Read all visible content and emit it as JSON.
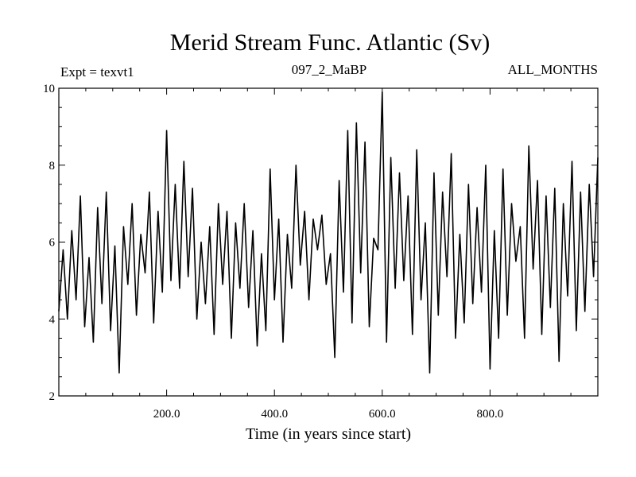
{
  "chart_data": {
    "type": "line",
    "title": "Merid Stream Func. Atlantic (Sv)",
    "experiment": "Expt = texvt1",
    "run_label": "097_2_MaBP",
    "period_label": "ALL_MONTHS",
    "xlabel": "Time (in years since start)",
    "ylabel": "",
    "xlim": [
      0,
      1000
    ],
    "ylim": [
      2,
      10
    ],
    "x_tick_labels": [
      {
        "value": 200,
        "label": "200.0"
      },
      {
        "value": 400,
        "label": "400.0"
      },
      {
        "value": 600,
        "label": "600.0"
      },
      {
        "value": 800,
        "label": "800.0"
      }
    ],
    "y_tick_labels": [
      {
        "value": 2,
        "label": "2"
      },
      {
        "value": 4,
        "label": "4"
      },
      {
        "value": 6,
        "label": "6"
      },
      {
        "value": 8,
        "label": "8"
      },
      {
        "value": 10,
        "label": "10"
      }
    ],
    "series": [
      {
        "name": "Merid Stream Func. Atlantic",
        "x": [
          0,
          8,
          16,
          24,
          32,
          40,
          48,
          56,
          64,
          72,
          80,
          88,
          96,
          104,
          112,
          120,
          128,
          136,
          144,
          152,
          160,
          168,
          176,
          184,
          192,
          200,
          208,
          216,
          224,
          232,
          240,
          248,
          256,
          264,
          272,
          280,
          288,
          296,
          304,
          312,
          320,
          328,
          336,
          344,
          352,
          360,
          368,
          376,
          384,
          392,
          400,
          408,
          416,
          424,
          432,
          440,
          448,
          456,
          464,
          472,
          480,
          488,
          496,
          504,
          512,
          520,
          528,
          536,
          544,
          552,
          560,
          568,
          576,
          584,
          592,
          600,
          608,
          616,
          624,
          632,
          640,
          648,
          656,
          664,
          672,
          680,
          688,
          696,
          704,
          712,
          720,
          728,
          736,
          744,
          752,
          760,
          768,
          776,
          784,
          792,
          800,
          808,
          816,
          824,
          832,
          840,
          848,
          856,
          864,
          872,
          880,
          888,
          896,
          904,
          912,
          920,
          928,
          936,
          944,
          952,
          960,
          968,
          976,
          984,
          992,
          1000
        ],
        "values": [
          4.2,
          5.8,
          4.0,
          6.3,
          4.5,
          7.2,
          3.8,
          5.6,
          3.4,
          6.9,
          4.4,
          7.3,
          3.7,
          5.9,
          2.6,
          6.4,
          4.9,
          7.0,
          4.1,
          6.2,
          5.2,
          7.3,
          3.9,
          6.8,
          4.7,
          8.9,
          5.0,
          7.5,
          4.8,
          8.1,
          5.1,
          7.4,
          4.0,
          6.0,
          4.4,
          6.4,
          3.6,
          7.0,
          4.9,
          6.8,
          3.5,
          6.5,
          4.8,
          7.0,
          4.3,
          6.3,
          3.3,
          5.7,
          3.7,
          7.9,
          4.5,
          6.6,
          3.4,
          6.2,
          4.8,
          8.0,
          5.4,
          6.8,
          4.5,
          6.6,
          5.8,
          6.7,
          4.9,
          5.7,
          3.0,
          7.6,
          4.7,
          8.9,
          3.9,
          9.1,
          5.2,
          8.6,
          3.8,
          6.1,
          5.8,
          9.9,
          3.4,
          8.2,
          4.8,
          7.8,
          5.0,
          7.2,
          3.6,
          8.4,
          4.5,
          6.5,
          2.6,
          7.8,
          4.1,
          7.3,
          5.1,
          8.3,
          3.5,
          6.2,
          3.9,
          7.5,
          4.4,
          6.9,
          4.7,
          8.0,
          2.7,
          6.3,
          3.5,
          7.9,
          4.1,
          7.0,
          5.5,
          6.4,
          3.5,
          8.5,
          5.3,
          7.6,
          3.6,
          7.2,
          4.3,
          7.4,
          2.9,
          7.0,
          4.6,
          8.1,
          3.7,
          7.3,
          4.2,
          7.5,
          5.1,
          8.2
        ]
      }
    ]
  }
}
